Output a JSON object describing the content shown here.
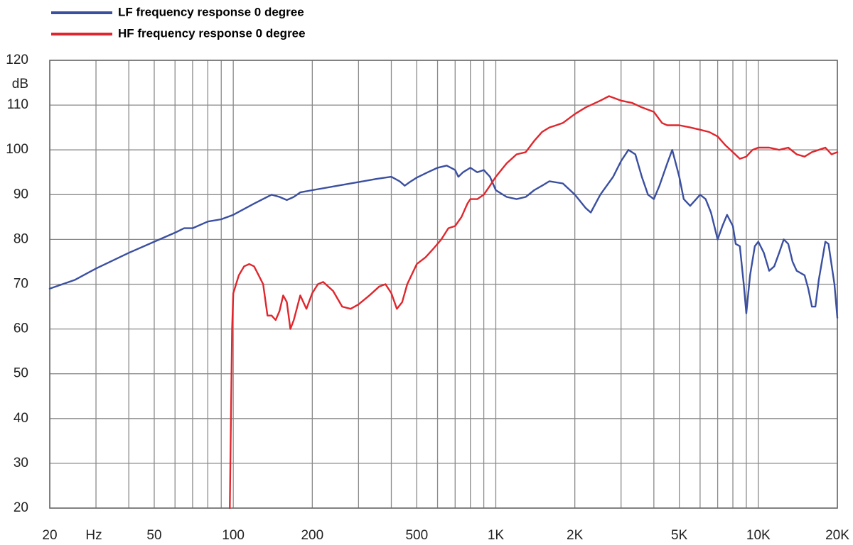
{
  "chart_data": {
    "type": "line",
    "title": "",
    "xlabel": "Hz",
    "ylabel": "dB",
    "xscale": "log",
    "xlim": [
      20,
      20000
    ],
    "ylim": [
      20,
      120
    ],
    "grid": true,
    "legend_placement": "top-left",
    "x_ticks": [
      {
        "value": 20,
        "label": "20"
      },
      {
        "value": 50,
        "label": "50"
      },
      {
        "value": 100,
        "label": "100"
      },
      {
        "value": 200,
        "label": "200"
      },
      {
        "value": 500,
        "label": "500"
      },
      {
        "value": 1000,
        "label": "1K"
      },
      {
        "value": 2000,
        "label": "2K"
      },
      {
        "value": 5000,
        "label": "5K"
      },
      {
        "value": 10000,
        "label": "10K"
      },
      {
        "value": 20000,
        "label": "20K"
      }
    ],
    "y_ticks": [
      20,
      30,
      40,
      50,
      60,
      70,
      80,
      90,
      100,
      110,
      120
    ],
    "series": [
      {
        "name": "LF frequency response 0 degree",
        "color": "#3a4fa0",
        "points": [
          [
            20,
            69
          ],
          [
            25,
            71
          ],
          [
            30,
            73.5
          ],
          [
            40,
            77
          ],
          [
            50,
            79.5
          ],
          [
            60,
            81.5
          ],
          [
            65,
            82.5
          ],
          [
            70,
            82.5
          ],
          [
            80,
            84
          ],
          [
            90,
            84.5
          ],
          [
            100,
            85.5
          ],
          [
            120,
            88
          ],
          [
            140,
            90
          ],
          [
            150,
            89.5
          ],
          [
            160,
            88.8
          ],
          [
            170,
            89.5
          ],
          [
            180,
            90.5
          ],
          [
            200,
            91
          ],
          [
            250,
            92
          ],
          [
            300,
            92.8
          ],
          [
            350,
            93.5
          ],
          [
            400,
            94
          ],
          [
            430,
            93
          ],
          [
            450,
            92
          ],
          [
            470,
            92.8
          ],
          [
            500,
            93.8
          ],
          [
            550,
            95
          ],
          [
            600,
            96
          ],
          [
            650,
            96.5
          ],
          [
            700,
            95.5
          ],
          [
            720,
            94
          ],
          [
            750,
            95
          ],
          [
            800,
            96
          ],
          [
            850,
            95
          ],
          [
            900,
            95.5
          ],
          [
            950,
            94
          ],
          [
            1000,
            91
          ],
          [
            1100,
            89.5
          ],
          [
            1200,
            89
          ],
          [
            1300,
            89.5
          ],
          [
            1400,
            91
          ],
          [
            1500,
            92
          ],
          [
            1600,
            93
          ],
          [
            1800,
            92.5
          ],
          [
            2000,
            90
          ],
          [
            2200,
            87
          ],
          [
            2300,
            86
          ],
          [
            2500,
            90
          ],
          [
            2800,
            94
          ],
          [
            3000,
            97.5
          ],
          [
            3200,
            100
          ],
          [
            3400,
            99
          ],
          [
            3600,
            94
          ],
          [
            3800,
            90
          ],
          [
            4000,
            89
          ],
          [
            4200,
            92
          ],
          [
            4500,
            97
          ],
          [
            4700,
            100
          ],
          [
            5000,
            94
          ],
          [
            5200,
            89
          ],
          [
            5500,
            87.5
          ],
          [
            5800,
            89
          ],
          [
            6000,
            90
          ],
          [
            6300,
            89
          ],
          [
            6600,
            86
          ],
          [
            7000,
            80
          ],
          [
            7300,
            83
          ],
          [
            7600,
            85.5
          ],
          [
            8000,
            83
          ],
          [
            8200,
            79
          ],
          [
            8500,
            78.5
          ],
          [
            8800,
            70
          ],
          [
            9000,
            63.5
          ],
          [
            9300,
            72
          ],
          [
            9700,
            78.5
          ],
          [
            10000,
            79.5
          ],
          [
            10500,
            77
          ],
          [
            11000,
            73
          ],
          [
            11500,
            74
          ],
          [
            12000,
            77
          ],
          [
            12500,
            80
          ],
          [
            13000,
            79
          ],
          [
            13500,
            75
          ],
          [
            14000,
            73
          ],
          [
            15000,
            72
          ],
          [
            15500,
            69
          ],
          [
            16000,
            65
          ],
          [
            16500,
            65
          ],
          [
            17000,
            71
          ],
          [
            18000,
            79.5
          ],
          [
            18500,
            79
          ],
          [
            19500,
            70
          ],
          [
            20000,
            62.5
          ]
        ]
      },
      {
        "name": "HF frequency response 0 degree",
        "color": "#e0262c",
        "points": [
          [
            97,
            20
          ],
          [
            98,
            40
          ],
          [
            99,
            60
          ],
          [
            100,
            68
          ],
          [
            105,
            72
          ],
          [
            110,
            74
          ],
          [
            115,
            74.5
          ],
          [
            120,
            74
          ],
          [
            125,
            72
          ],
          [
            130,
            70
          ],
          [
            135,
            63
          ],
          [
            140,
            63
          ],
          [
            145,
            62
          ],
          [
            150,
            64
          ],
          [
            155,
            67.5
          ],
          [
            160,
            66
          ],
          [
            165,
            60
          ],
          [
            170,
            62
          ],
          [
            180,
            67.5
          ],
          [
            190,
            64.5
          ],
          [
            200,
            68
          ],
          [
            210,
            70
          ],
          [
            220,
            70.5
          ],
          [
            240,
            68.5
          ],
          [
            260,
            65
          ],
          [
            280,
            64.5
          ],
          [
            300,
            65.5
          ],
          [
            330,
            67.5
          ],
          [
            360,
            69.5
          ],
          [
            380,
            70
          ],
          [
            400,
            68
          ],
          [
            420,
            64.5
          ],
          [
            440,
            66
          ],
          [
            460,
            70
          ],
          [
            500,
            74.5
          ],
          [
            540,
            76
          ],
          [
            580,
            78
          ],
          [
            620,
            80
          ],
          [
            660,
            82.5
          ],
          [
            700,
            83
          ],
          [
            740,
            85
          ],
          [
            780,
            88
          ],
          [
            800,
            89
          ],
          [
            850,
            89
          ],
          [
            900,
            90
          ],
          [
            950,
            92
          ],
          [
            1000,
            94
          ],
          [
            1100,
            97
          ],
          [
            1200,
            99
          ],
          [
            1300,
            99.5
          ],
          [
            1400,
            102
          ],
          [
            1500,
            104
          ],
          [
            1600,
            105
          ],
          [
            1700,
            105.5
          ],
          [
            1800,
            106
          ],
          [
            2000,
            108
          ],
          [
            2200,
            109.5
          ],
          [
            2500,
            111
          ],
          [
            2700,
            112
          ],
          [
            3000,
            111
          ],
          [
            3300,
            110.5
          ],
          [
            3600,
            109.5
          ],
          [
            4000,
            108.5
          ],
          [
            4300,
            106
          ],
          [
            4500,
            105.5
          ],
          [
            5000,
            105.5
          ],
          [
            5500,
            105
          ],
          [
            6000,
            104.5
          ],
          [
            6500,
            104
          ],
          [
            7000,
            103
          ],
          [
            7500,
            101
          ],
          [
            8000,
            99.5
          ],
          [
            8500,
            98
          ],
          [
            9000,
            98.5
          ],
          [
            9500,
            100
          ],
          [
            10000,
            100.5
          ],
          [
            11000,
            100.5
          ],
          [
            12000,
            100
          ],
          [
            13000,
            100.5
          ],
          [
            14000,
            99
          ],
          [
            15000,
            98.5
          ],
          [
            16000,
            99.5
          ],
          [
            17000,
            100
          ],
          [
            18000,
            100.5
          ],
          [
            19000,
            99
          ],
          [
            20000,
            99.5
          ]
        ]
      }
    ]
  }
}
